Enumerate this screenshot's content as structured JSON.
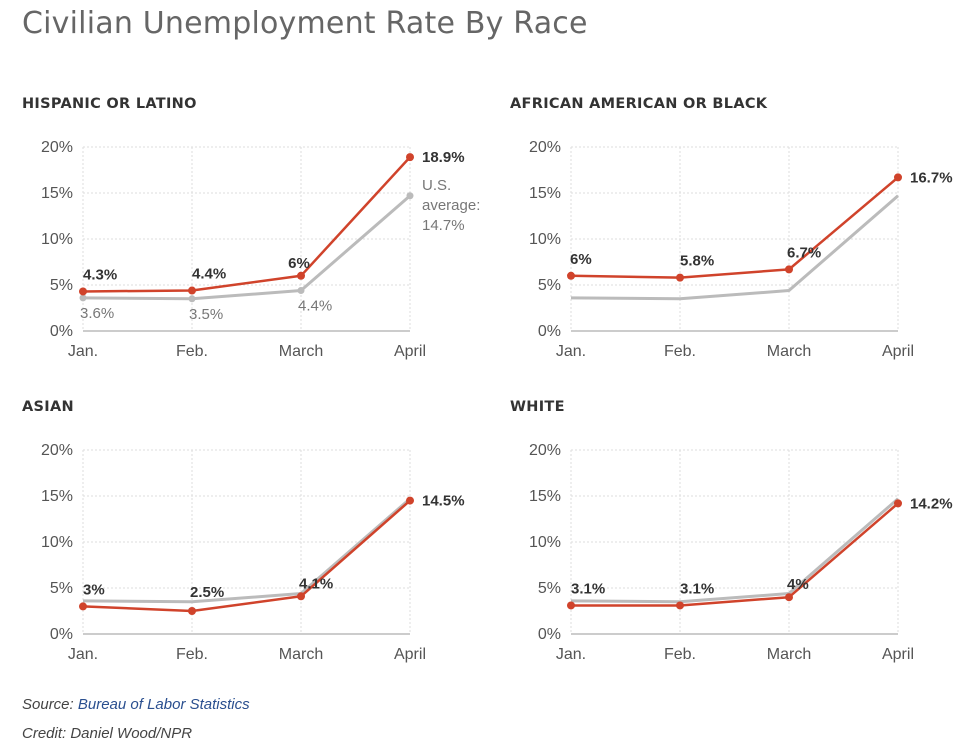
{
  "title": "Civilian Unemployment Rate By Race",
  "source_label": "Source: ",
  "source_link": "Bureau of Labor Statistics",
  "credit": "Credit: Daniel Wood/NPR",
  "colors": {
    "group": "#d0432b",
    "average": "#bbbbbb",
    "grid": "#dddddd",
    "axis": "#999999"
  },
  "chart_data": [
    {
      "type": "line",
      "title": "HISPANIC OR LATINO",
      "categories": [
        "Jan.",
        "Feb.",
        "March",
        "April"
      ],
      "yticks": [
        "0%",
        "5%",
        "10%",
        "15%",
        "20%"
      ],
      "ylim": [
        0,
        20
      ],
      "series": [
        {
          "role": "group",
          "values": [
            4.3,
            4.4,
            6.0,
            18.9
          ],
          "labels": [
            "4.3%",
            "4.4%",
            "6%",
            "18.9%"
          ]
        },
        {
          "role": "average",
          "values": [
            3.6,
            3.5,
            4.4,
            14.7
          ],
          "labels": [
            "3.6%",
            "3.5%",
            "4.4%",
            "U.S.|average:|14.7%"
          ]
        }
      ]
    },
    {
      "type": "line",
      "title": "AFRICAN AMERICAN OR BLACK",
      "categories": [
        "Jan.",
        "Feb.",
        "March",
        "April"
      ],
      "yticks": [
        "0%",
        "5%",
        "10%",
        "15%",
        "20%"
      ],
      "ylim": [
        0,
        20
      ],
      "series": [
        {
          "role": "group",
          "values": [
            6.0,
            5.8,
            6.7,
            16.7
          ],
          "labels": [
            "6%",
            "5.8%",
            "6.7%",
            "16.7%"
          ]
        },
        {
          "role": "average",
          "values": [
            3.6,
            3.5,
            4.4,
            14.7
          ]
        }
      ]
    },
    {
      "type": "line",
      "title": "ASIAN",
      "categories": [
        "Jan.",
        "Feb.",
        "March",
        "April"
      ],
      "yticks": [
        "0%",
        "5%",
        "10%",
        "15%",
        "20%"
      ],
      "ylim": [
        0,
        20
      ],
      "series": [
        {
          "role": "group",
          "values": [
            3.0,
            2.5,
            4.1,
            14.5
          ],
          "labels": [
            "3%",
            "2.5%",
            "4.1%",
            "14.5%"
          ]
        },
        {
          "role": "average",
          "values": [
            3.6,
            3.5,
            4.4,
            14.7
          ]
        }
      ]
    },
    {
      "type": "line",
      "title": "WHITE",
      "categories": [
        "Jan.",
        "Feb.",
        "March",
        "April"
      ],
      "yticks": [
        "0%",
        "5%",
        "10%",
        "15%",
        "20%"
      ],
      "ylim": [
        0,
        20
      ],
      "series": [
        {
          "role": "group",
          "values": [
            3.1,
            3.1,
            4.0,
            14.2
          ],
          "labels": [
            "3.1%",
            "3.1%",
            "4%",
            "14.2%"
          ]
        },
        {
          "role": "average",
          "values": [
            3.6,
            3.5,
            4.4,
            14.7
          ]
        }
      ]
    }
  ]
}
